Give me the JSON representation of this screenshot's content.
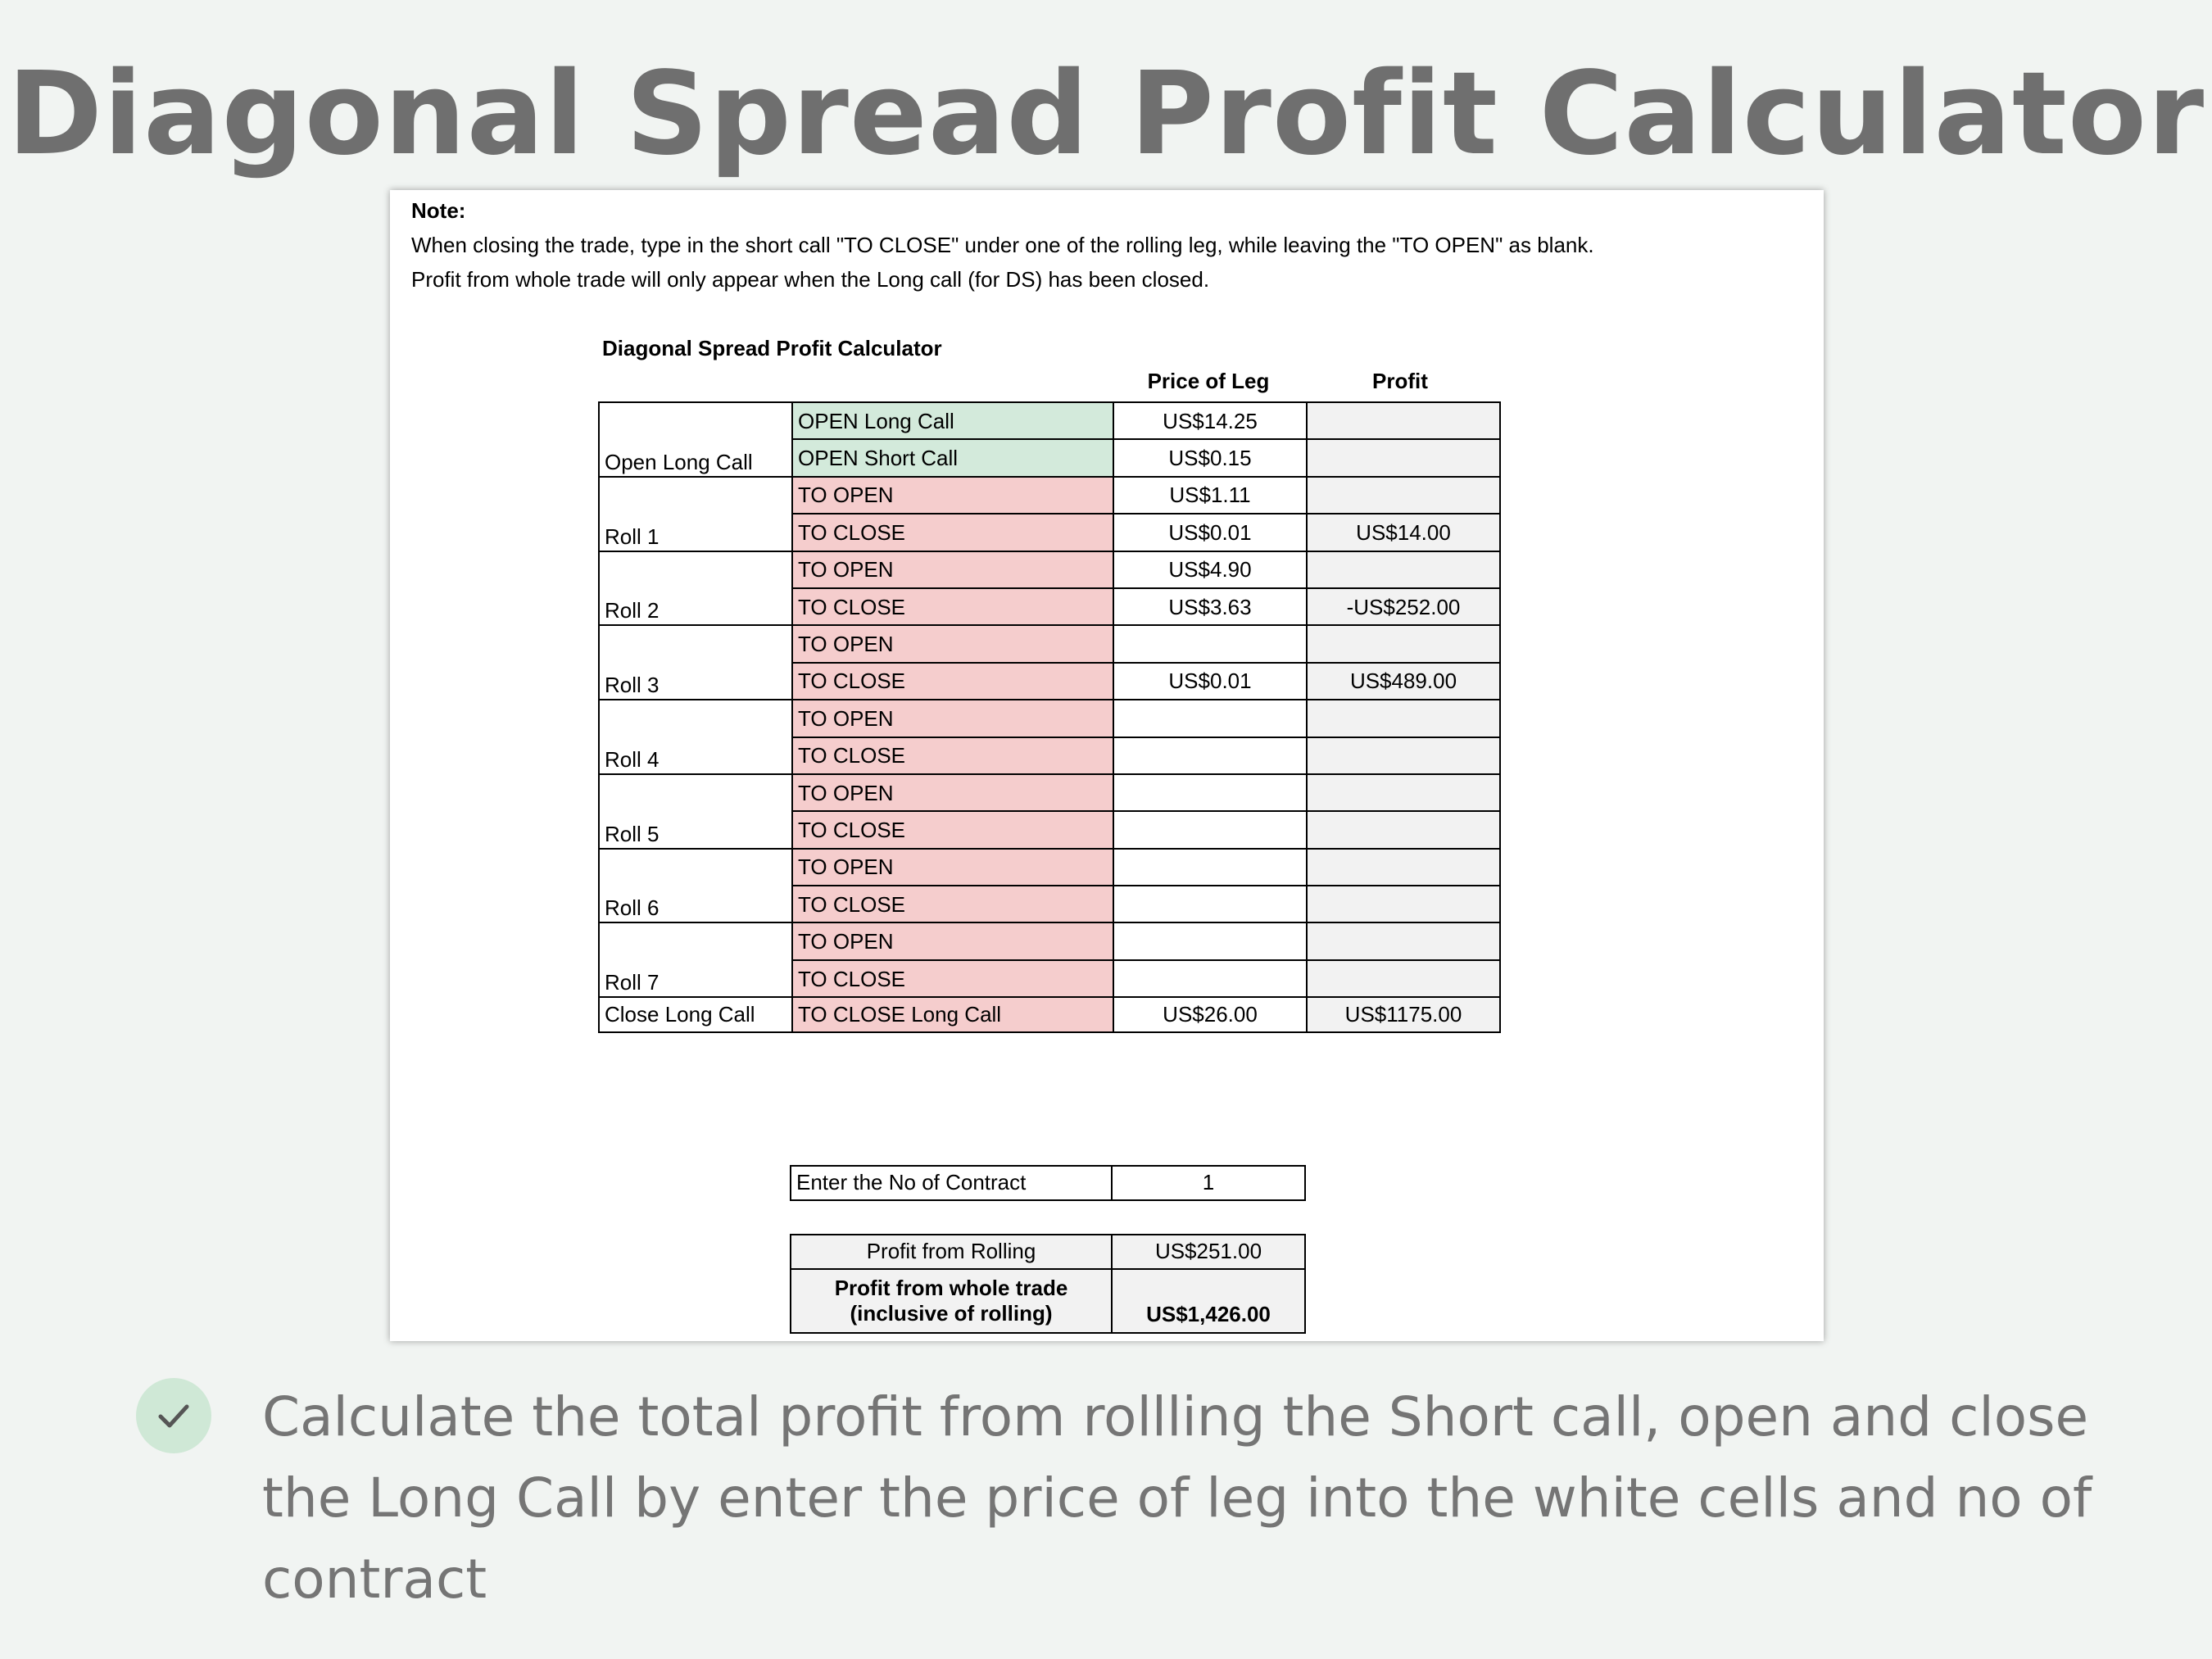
{
  "page_title": "Diagonal Spread Profit Calculator",
  "note": {
    "title": "Note:",
    "line1": "When closing the trade, type in the short call \"TO CLOSE\" under one of the rolling leg, while leaving the \"TO OPEN\" as blank.",
    "line2": "Profit from whole trade will only appear when the Long call (for DS) has been closed."
  },
  "calculator": {
    "title": "Diagonal Spread Profit Calculator",
    "col_price": "Price of Leg",
    "col_profit": "Profit",
    "rows": [
      {
        "group": "",
        "leg": "OPEN Long Call",
        "price": "US$14.25",
        "profit": ""
      },
      {
        "group": "Open Long Call",
        "leg": "OPEN Short Call",
        "price": "US$0.15",
        "profit": ""
      },
      {
        "group": "",
        "leg": "TO OPEN",
        "price": "US$1.11",
        "profit": ""
      },
      {
        "group": "Roll 1",
        "leg": "TO CLOSE",
        "price": "US$0.01",
        "profit": "US$14.00"
      },
      {
        "group": "",
        "leg": "TO OPEN",
        "price": "US$4.90",
        "profit": ""
      },
      {
        "group": "Roll 2",
        "leg": "TO CLOSE",
        "price": "US$3.63",
        "profit": "-US$252.00"
      },
      {
        "group": "",
        "leg": "TO OPEN",
        "price": "",
        "profit": ""
      },
      {
        "group": "Roll 3",
        "leg": "TO CLOSE",
        "price": "US$0.01",
        "profit": "US$489.00"
      },
      {
        "group": "",
        "leg": "TO OPEN",
        "price": "",
        "profit": ""
      },
      {
        "group": "Roll 4",
        "leg": "TO CLOSE",
        "price": "",
        "profit": ""
      },
      {
        "group": "",
        "leg": "TO OPEN",
        "price": "",
        "profit": ""
      },
      {
        "group": "Roll 5",
        "leg": "TO CLOSE",
        "price": "",
        "profit": ""
      },
      {
        "group": "",
        "leg": "TO OPEN",
        "price": "",
        "profit": ""
      },
      {
        "group": "Roll 6",
        "leg": "TO CLOSE",
        "price": "",
        "profit": ""
      },
      {
        "group": "",
        "leg": "TO OPEN",
        "price": "",
        "profit": ""
      },
      {
        "group": "Roll 7",
        "leg": "TO CLOSE",
        "price": "",
        "profit": ""
      },
      {
        "group": "Close Long Call",
        "leg": "TO CLOSE Long Call",
        "price": "US$26.00",
        "profit": "US$1175.00"
      }
    ],
    "contracts_label": "Enter the No of Contract",
    "contracts_value": "1",
    "profit_rolling_label": "Profit from Rolling",
    "profit_rolling_value": "US$251.00",
    "profit_whole_label_1": "Profit from whole trade",
    "profit_whole_label_2": "(inclusive of rolling)",
    "profit_whole_value": "US$1,426.00"
  },
  "feature": {
    "icon": "check-icon",
    "text": "Calculate the total profit from rollling the Short call, open and close the Long Call by enter the price of leg into the white cells and no of contract"
  },
  "colors": {
    "background": "#f1f4f2",
    "title": "#6f6f6f",
    "leg_green": "#d3eadb",
    "leg_red": "#f5cdcd",
    "formula_cell": "#f2f2f2",
    "badge": "#cfe8d6"
  }
}
